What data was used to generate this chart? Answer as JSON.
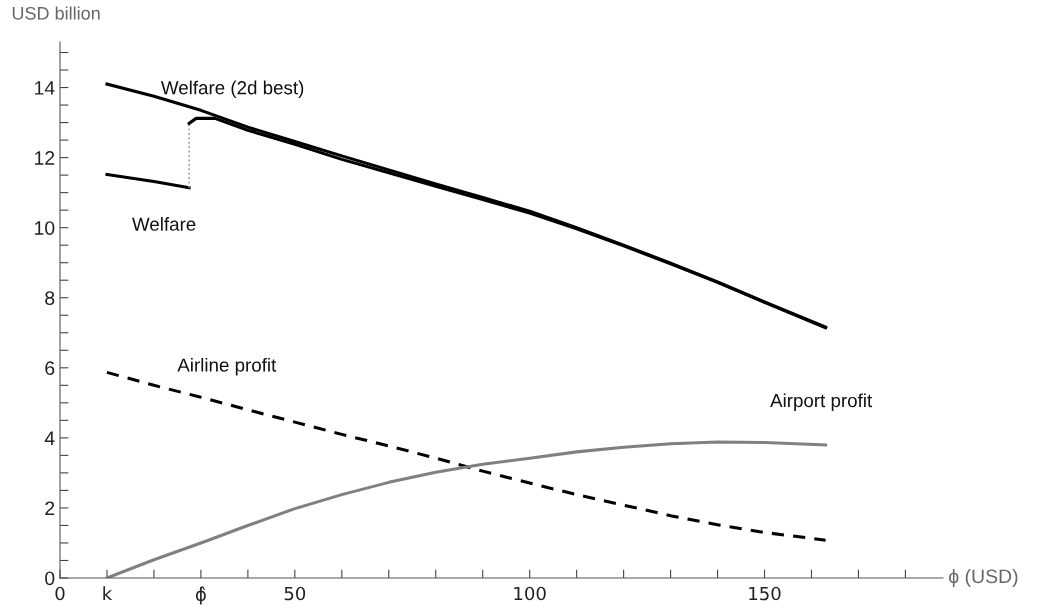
{
  "chart_data": {
    "type": "line",
    "ylabel": "USD billion",
    "xlabel": "ϕ (USD)",
    "xlim": [
      0,
      188
    ],
    "ylim": [
      0,
      15.3
    ],
    "xticks": [
      0,
      {
        "value": 10,
        "label": "k"
      },
      {
        "value": 20,
        "label": null
      },
      {
        "value": 30,
        "label": "ϕ̂"
      },
      {
        "value": 40,
        "label": null
      },
      50,
      {
        "value": 60,
        "label": null
      },
      {
        "value": 70,
        "label": null
      },
      {
        "value": 80,
        "label": null
      },
      {
        "value": 90,
        "label": null
      },
      100,
      {
        "value": 110,
        "label": null
      },
      {
        "value": 120,
        "label": null
      },
      {
        "value": 130,
        "label": null
      },
      {
        "value": 140,
        "label": null
      },
      150,
      {
        "value": 160,
        "label": null
      },
      {
        "value": 170,
        "label": null
      },
      {
        "value": 180,
        "label": null
      }
    ],
    "yticks": [
      0,
      {
        "value": 0.5,
        "label": null
      },
      {
        "value": 1,
        "label": null
      },
      {
        "value": 1.5,
        "label": null
      },
      2,
      {
        "value": 2.5,
        "label": null
      },
      {
        "value": 3,
        "label": null
      },
      {
        "value": 3.5,
        "label": null
      },
      4,
      {
        "value": 4.5,
        "label": null
      },
      {
        "value": 5,
        "label": null
      },
      {
        "value": 5.5,
        "label": null
      },
      6,
      {
        "value": 6.5,
        "label": null
      },
      {
        "value": 7,
        "label": null
      },
      {
        "value": 7.5,
        "label": null
      },
      8,
      {
        "value": 8.5,
        "label": null
      },
      {
        "value": 9,
        "label": null
      },
      {
        "value": 9.5,
        "label": null
      },
      10,
      {
        "value": 10.5,
        "label": null
      },
      {
        "value": 11,
        "label": null
      },
      {
        "value": 11.5,
        "label": null
      },
      12,
      {
        "value": 12.5,
        "label": null
      },
      {
        "value": 13,
        "label": null
      },
      {
        "value": 13.5,
        "label": null
      },
      14,
      {
        "value": 14.5,
        "label": null
      },
      {
        "value": 15,
        "label": null
      }
    ],
    "grid": false,
    "series": [
      {
        "name": "Welfare (2d best)",
        "color": "#000000",
        "line_style": "solid",
        "x": [
          10,
          20,
          30,
          40,
          50,
          60,
          70,
          80,
          90,
          100,
          110,
          120,
          130,
          140,
          150,
          163
        ],
        "values": [
          14.1,
          13.75,
          13.35,
          12.87,
          12.46,
          12.05,
          11.65,
          11.25,
          10.86,
          10.47,
          10.0,
          9.5,
          8.99,
          8.45,
          7.88,
          7.16
        ]
      },
      {
        "name": "Welfare",
        "color": "#000000",
        "line_style": "solid",
        "x": [
          10,
          20,
          27.5
        ],
        "values": [
          11.52,
          11.32,
          11.14
        ]
      },
      {
        "color": "#999999",
        "line_style": "dotted",
        "x": [
          27.5,
          27.5
        ],
        "values": [
          11.14,
          12.98
        ]
      },
      {
        "color": "#000000",
        "line_style": "solid",
        "x": [
          27.5,
          29,
          33,
          40,
          50,
          60,
          70,
          80,
          90,
          100,
          110,
          120,
          130,
          140,
          150,
          163
        ],
        "values": [
          12.98,
          13.12,
          13.12,
          12.78,
          12.38,
          11.95,
          11.57,
          11.18,
          10.8,
          10.42,
          9.97,
          9.48,
          8.97,
          8.44,
          7.87,
          7.14
        ]
      },
      {
        "name": "Airline profit",
        "color": "#000000",
        "line_style": "dashed",
        "x": [
          10,
          20,
          30,
          40,
          50,
          60,
          70,
          80,
          90,
          100,
          110,
          120,
          130,
          140,
          150,
          163
        ],
        "values": [
          5.87,
          5.5,
          5.16,
          4.8,
          4.45,
          4.1,
          3.77,
          3.42,
          3.05,
          2.71,
          2.38,
          2.08,
          1.78,
          1.52,
          1.3,
          1.08
        ]
      },
      {
        "name": "Airport profit",
        "color": "#808080",
        "line_style": "solid",
        "x": [
          10,
          20,
          30,
          40,
          50,
          60,
          70,
          80,
          90,
          100,
          110,
          120,
          130,
          140,
          150,
          163
        ],
        "values": [
          0,
          0.52,
          1.0,
          1.5,
          1.98,
          2.38,
          2.73,
          3.02,
          3.25,
          3.42,
          3.6,
          3.73,
          3.83,
          3.88,
          3.87,
          3.8
        ]
      }
    ]
  }
}
